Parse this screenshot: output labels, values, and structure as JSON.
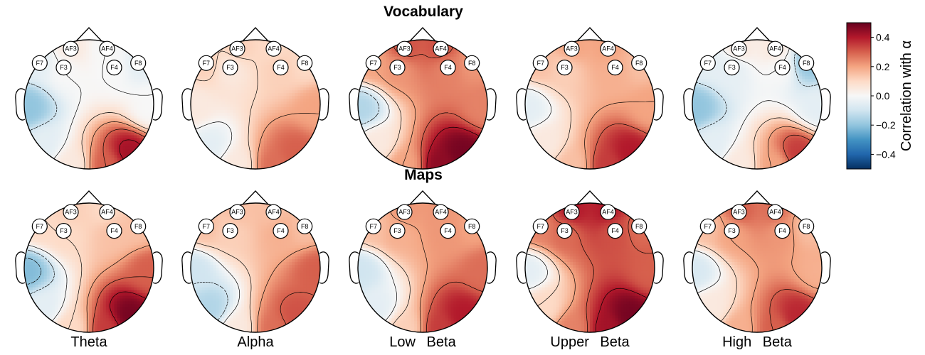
{
  "chart_data": {
    "type": "heatmap",
    "subtype": "eeg-topomap-grid",
    "rows": [
      {
        "title": "Vocabulary",
        "maps": [
          {
            "band": "Theta",
            "values": {
              "AF3": 0.05,
              "AF4": 0.0,
              "F7": -0.05,
              "F3": 0.0,
              "F4": 0.0,
              "F8": -0.05,
              "T7": -0.2,
              "T8": 0.0,
              "P7": -0.05,
              "P8": 0.42,
              "O1": 0.05,
              "O2": 0.3
            }
          },
          {
            "band": "Alpha",
            "values": {
              "AF3": 0.12,
              "AF4": 0.1,
              "F7": 0.12,
              "F3": 0.05,
              "F4": 0.12,
              "F8": 0.1,
              "T7": 0.05,
              "T8": 0.2,
              "P7": -0.05,
              "P8": 0.3,
              "O1": 0.05,
              "O2": 0.28
            }
          },
          {
            "band": "Low Beta",
            "values": {
              "AF3": 0.32,
              "AF4": 0.32,
              "F7": 0.2,
              "F3": 0.22,
              "F4": 0.25,
              "F8": 0.22,
              "T7": -0.15,
              "T8": 0.25,
              "P7": 0.05,
              "P8": 0.48,
              "O1": 0.2,
              "O2": 0.45
            }
          },
          {
            "band": "Upper Beta",
            "values": {
              "AF3": 0.2,
              "AF4": 0.2,
              "F7": 0.15,
              "F3": 0.12,
              "F4": 0.18,
              "F8": 0.15,
              "T7": -0.05,
              "T8": 0.2,
              "P7": 0.05,
              "P8": 0.4,
              "O1": 0.15,
              "O2": 0.35
            }
          },
          {
            "band": "High Beta",
            "values": {
              "AF3": 0.05,
              "AF4": 0.05,
              "F7": -0.05,
              "F3": -0.05,
              "F4": 0.0,
              "F8": -0.2,
              "T7": -0.2,
              "T8": -0.05,
              "P7": -0.05,
              "P8": 0.35,
              "O1": 0.05,
              "O2": 0.2
            }
          }
        ]
      },
      {
        "title": "Maps",
        "maps": [
          {
            "band": "Theta",
            "values": {
              "AF3": 0.12,
              "AF4": 0.1,
              "F7": 0.1,
              "F3": 0.1,
              "F4": 0.15,
              "F8": 0.15,
              "T7": -0.22,
              "T8": 0.3,
              "P7": -0.05,
              "P8": 0.48,
              "O1": 0.1,
              "O2": 0.35
            }
          },
          {
            "band": "Alpha",
            "values": {
              "AF3": 0.15,
              "AF4": 0.15,
              "F7": 0.15,
              "F3": 0.12,
              "F4": 0.18,
              "F8": 0.15,
              "T7": -0.1,
              "T8": 0.3,
              "P7": -0.15,
              "P8": 0.32,
              "O1": 0.05,
              "O2": 0.28
            }
          },
          {
            "band": "Low Beta",
            "values": {
              "AF3": 0.22,
              "AF4": 0.22,
              "F7": 0.15,
              "F3": 0.18,
              "F4": 0.22,
              "F8": 0.2,
              "T7": -0.1,
              "T8": 0.28,
              "P7": -0.05,
              "P8": 0.4,
              "O1": 0.12,
              "O2": 0.35
            }
          },
          {
            "band": "Upper Beta",
            "values": {
              "AF3": 0.4,
              "AF4": 0.4,
              "F7": 0.25,
              "F3": 0.28,
              "F4": 0.32,
              "F8": 0.28,
              "T7": -0.05,
              "T8": 0.3,
              "P7": 0.1,
              "P8": 0.48,
              "O1": 0.25,
              "O2": 0.42
            }
          },
          {
            "band": "High Beta",
            "values": {
              "AF3": 0.3,
              "AF4": 0.28,
              "F7": 0.15,
              "F3": 0.2,
              "F4": 0.22,
              "F8": 0.15,
              "T7": -0.08,
              "T8": 0.18,
              "P7": 0.05,
              "P8": 0.38,
              "O1": 0.18,
              "O2": 0.3
            }
          }
        ]
      }
    ],
    "electrodes_labeled": [
      "AF3",
      "AF4",
      "F7",
      "F3",
      "F4",
      "F8"
    ],
    "colorbar": {
      "label": "Correlation with α",
      "range": [
        -0.5,
        0.5
      ],
      "ticks": [
        0.4,
        0.2,
        0.0,
        -0.2,
        -0.4
      ],
      "tick_labels": [
        "0.4",
        "0.2",
        "0.0",
        "−0.2",
        "−0.4"
      ],
      "colormap": "RdBu_r",
      "stops": [
        "#053061",
        "#2166ac",
        "#4393c3",
        "#92c5de",
        "#d1e5f0",
        "#f7f7f7",
        "#fddbc7",
        "#f4a582",
        "#d6604d",
        "#b2182b",
        "#67001f"
      ]
    },
    "contours": true,
    "negative_contour_style": "dashed"
  }
}
